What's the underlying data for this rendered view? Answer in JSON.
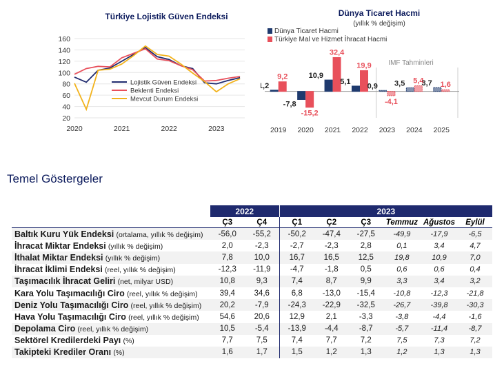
{
  "chart_data": [
    {
      "type": "line",
      "title": "Türkiye Lojistik Güven Endeksi",
      "x": [
        2020,
        2020.25,
        2020.5,
        2020.75,
        2021,
        2021.25,
        2021.5,
        2021.75,
        2022,
        2022.25,
        2022.5,
        2022.75,
        2023,
        2023.25,
        2023.5
      ],
      "xticks": [
        "2020",
        "2021",
        "2022",
        "2023"
      ],
      "ylim": [
        20,
        160
      ],
      "yticks": [
        "20",
        "40",
        "60",
        "80",
        "100",
        "120",
        "140",
        "160"
      ],
      "legend": "inside-bottom-left",
      "series": [
        {
          "name": "Lojistik Güven Endeksi",
          "color": "#1f2a6e",
          "values": [
            92,
            83,
            104,
            108,
            120,
            132,
            144,
            128,
            123,
            112,
            107,
            82,
            80,
            86,
            91
          ]
        },
        {
          "name": "Beklenti Endeksi",
          "color": "#e8505b",
          "values": [
            97,
            107,
            111,
            110,
            126,
            134,
            142,
            124,
            121,
            112,
            105,
            85,
            86,
            90,
            93
          ]
        },
        {
          "name": "Mevcut Durum Endeksi",
          "color": "#f2b21b",
          "values": [
            81,
            35,
            104,
            106,
            115,
            130,
            147,
            132,
            129,
            115,
            99,
            84,
            66,
            80,
            89
          ]
        }
      ]
    },
    {
      "type": "bar",
      "title": "Dünya Ticaret Hacmi",
      "subtitle": "(yıllık % değişim)",
      "categories": [
        "2019",
        "2020",
        "2021",
        "2022",
        "2023",
        "2024",
        "2025"
      ],
      "ylim": [
        -20,
        36
      ],
      "legend": "top-left",
      "annotation": "IMF Tahminleri",
      "forecast_from": "2023",
      "series": [
        {
          "name": "Dünya Ticaret Hacmi",
          "color": "#1f3a6e",
          "values": [
            1.2,
            -7.8,
            10.9,
            5.1,
            0.9,
            3.5,
            3.7
          ]
        },
        {
          "name": "Türkiye Mal ve Hizmet İhracat Hacmi",
          "color": "#e8505b",
          "values": [
            9.2,
            -15.2,
            32.4,
            19.9,
            -4.1,
            5.4,
            1.6
          ]
        }
      ],
      "value_labels": [
        [
          "1,2",
          "-7,8",
          "10,9",
          "5,1",
          "0,9",
          "3,5",
          "3,7"
        ],
        [
          "9,2",
          "-15,2",
          "32,4",
          "19,9",
          "-4,1",
          "5,4",
          "1,6"
        ]
      ]
    }
  ],
  "section_title": "Temel Göstergeler",
  "table": {
    "years": [
      "2022",
      "2023"
    ],
    "quarters": [
      "Ç3",
      "Ç4",
      "Ç1",
      "Ç2",
      "Ç3"
    ],
    "months": [
      "Temmuz",
      "Ağustos",
      "Eylül"
    ],
    "rows": [
      {
        "label": "Baltık Kuru Yük Endeksi",
        "unit": "(ortalama, yıllık % değişim)",
        "values": [
          "-56,0",
          "-55,2",
          "-50,2",
          "-47,4",
          "-27,5",
          "-49,9",
          "-17,9",
          "-6,5"
        ]
      },
      {
        "label": "İhracat Miktar Endeksi",
        "unit": "(yıllık % değişim)",
        "values": [
          "2,0",
          "-2,3",
          "-2,7",
          "-2,3",
          "2,8",
          "0,1",
          "3,4",
          "4,7"
        ]
      },
      {
        "label": "İthalat Miktar Endeksi",
        "unit": "(yıllık % değişim)",
        "values": [
          "7,8",
          "10,0",
          "16,7",
          "16,5",
          "12,5",
          "19,8",
          "10,9",
          "7,0"
        ]
      },
      {
        "label": "İhracat İklimi Endeksi",
        "unit": "(reel, yıllık % değişim)",
        "values": [
          "-12,3",
          "-11,9",
          "-4,7",
          "-1,8",
          "0,5",
          "0,6",
          "0,6",
          "0,4"
        ]
      },
      {
        "label": "Taşımacılık İhracat Geliri",
        "unit": "(net, milyar USD)",
        "values": [
          "10,8",
          "9,3",
          "7,4",
          "8,7",
          "9,9",
          "3,3",
          "3,4",
          "3,2"
        ]
      },
      {
        "label": "Kara Yolu Taşımacılığı Ciro",
        "unit": "(reel, yıllık % değişim)",
        "values": [
          "39,4",
          "34,6",
          "6,8",
          "-13,0",
          "-15,4",
          "-10,8",
          "-12,3",
          "-21,8"
        ]
      },
      {
        "label": "Deniz Yolu Taşımacılığı Ciro",
        "unit": "(reel, yıllık % değişim)",
        "values": [
          "20,2",
          "-7,9",
          "-24,3",
          "-22,9",
          "-32,5",
          "-26,7",
          "-39,8",
          "-30,3"
        ]
      },
      {
        "label": "Hava Yolu Taşımacılığı Ciro",
        "unit": "(reel, yıllık % değişim)",
        "values": [
          "54,6",
          "20,6",
          "12,9",
          "2,1",
          "-3,3",
          "-3,8",
          "-4,4",
          "-1,6"
        ]
      },
      {
        "label": "Depolama Ciro",
        "unit": "(reel, yıllık % değişim)",
        "values": [
          "10,5",
          "-5,4",
          "-13,9",
          "-4,4",
          "-8,7",
          "-5,7",
          "-11,4",
          "-8,7"
        ]
      },
      {
        "label": "Sektörel Kredilerdeki Payı",
        "unit": "(%)",
        "values": [
          "7,7",
          "7,5",
          "7,4",
          "7,7",
          "7,2",
          "7,5",
          "7,3",
          "7,2"
        ]
      },
      {
        "label": "Takipteki Krediler Oranı",
        "unit": "(%)",
        "values": [
          "1,6",
          "1,7",
          "1,5",
          "1,2",
          "1,3",
          "1,2",
          "1,3",
          "1,3"
        ]
      }
    ]
  }
}
